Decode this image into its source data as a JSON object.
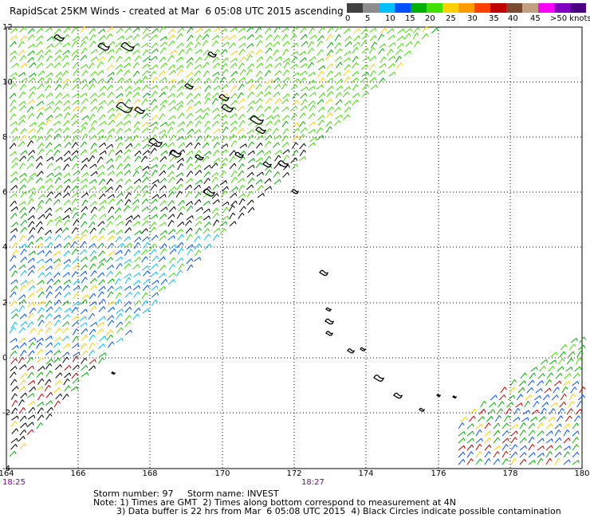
{
  "title": "RapidScat 25KM Winds - created at Mar  6 05:08 UTC 2015 ascending",
  "color_scale": {
    "labels": [
      "0",
      "5",
      "10",
      "15",
      "20",
      "25",
      "30",
      "35",
      "40",
      "45",
      ">50 knots"
    ],
    "colors": [
      "#404040",
      "#8c8c8c",
      "#00bfff",
      "#0050ff",
      "#00b000",
      "#40e000",
      "#ffd000",
      "#ff9a00",
      "#ff4000",
      "#c00000",
      "#7a4a30",
      "#c0a080",
      "#ff00ff",
      "#8000c0",
      "#4b0082"
    ]
  },
  "map": {
    "lon_labels": [
      "164",
      "166",
      "168",
      "170",
      "172",
      "174",
      "176",
      "178",
      "180"
    ],
    "lat_labels": [
      "12",
      "10",
      "8",
      "6",
      "4",
      "2",
      "0",
      "-2",
      "-4"
    ],
    "time_labels": [
      {
        "text": "18:25"
      },
      {
        "text": "18:27"
      }
    ],
    "time_color": "#8000a0"
  },
  "footer": {
    "storm": "Storm number: 97     Storm name: INVEST",
    "note1": "Note: 1) Times are GMT  2) Times along bottom correspond to measurement at 4N",
    "note2": "3) Data buffer is 22 hrs from Mar  6 05:08 UTC 2015  4) Black Circles indicate possible contamination"
  }
}
